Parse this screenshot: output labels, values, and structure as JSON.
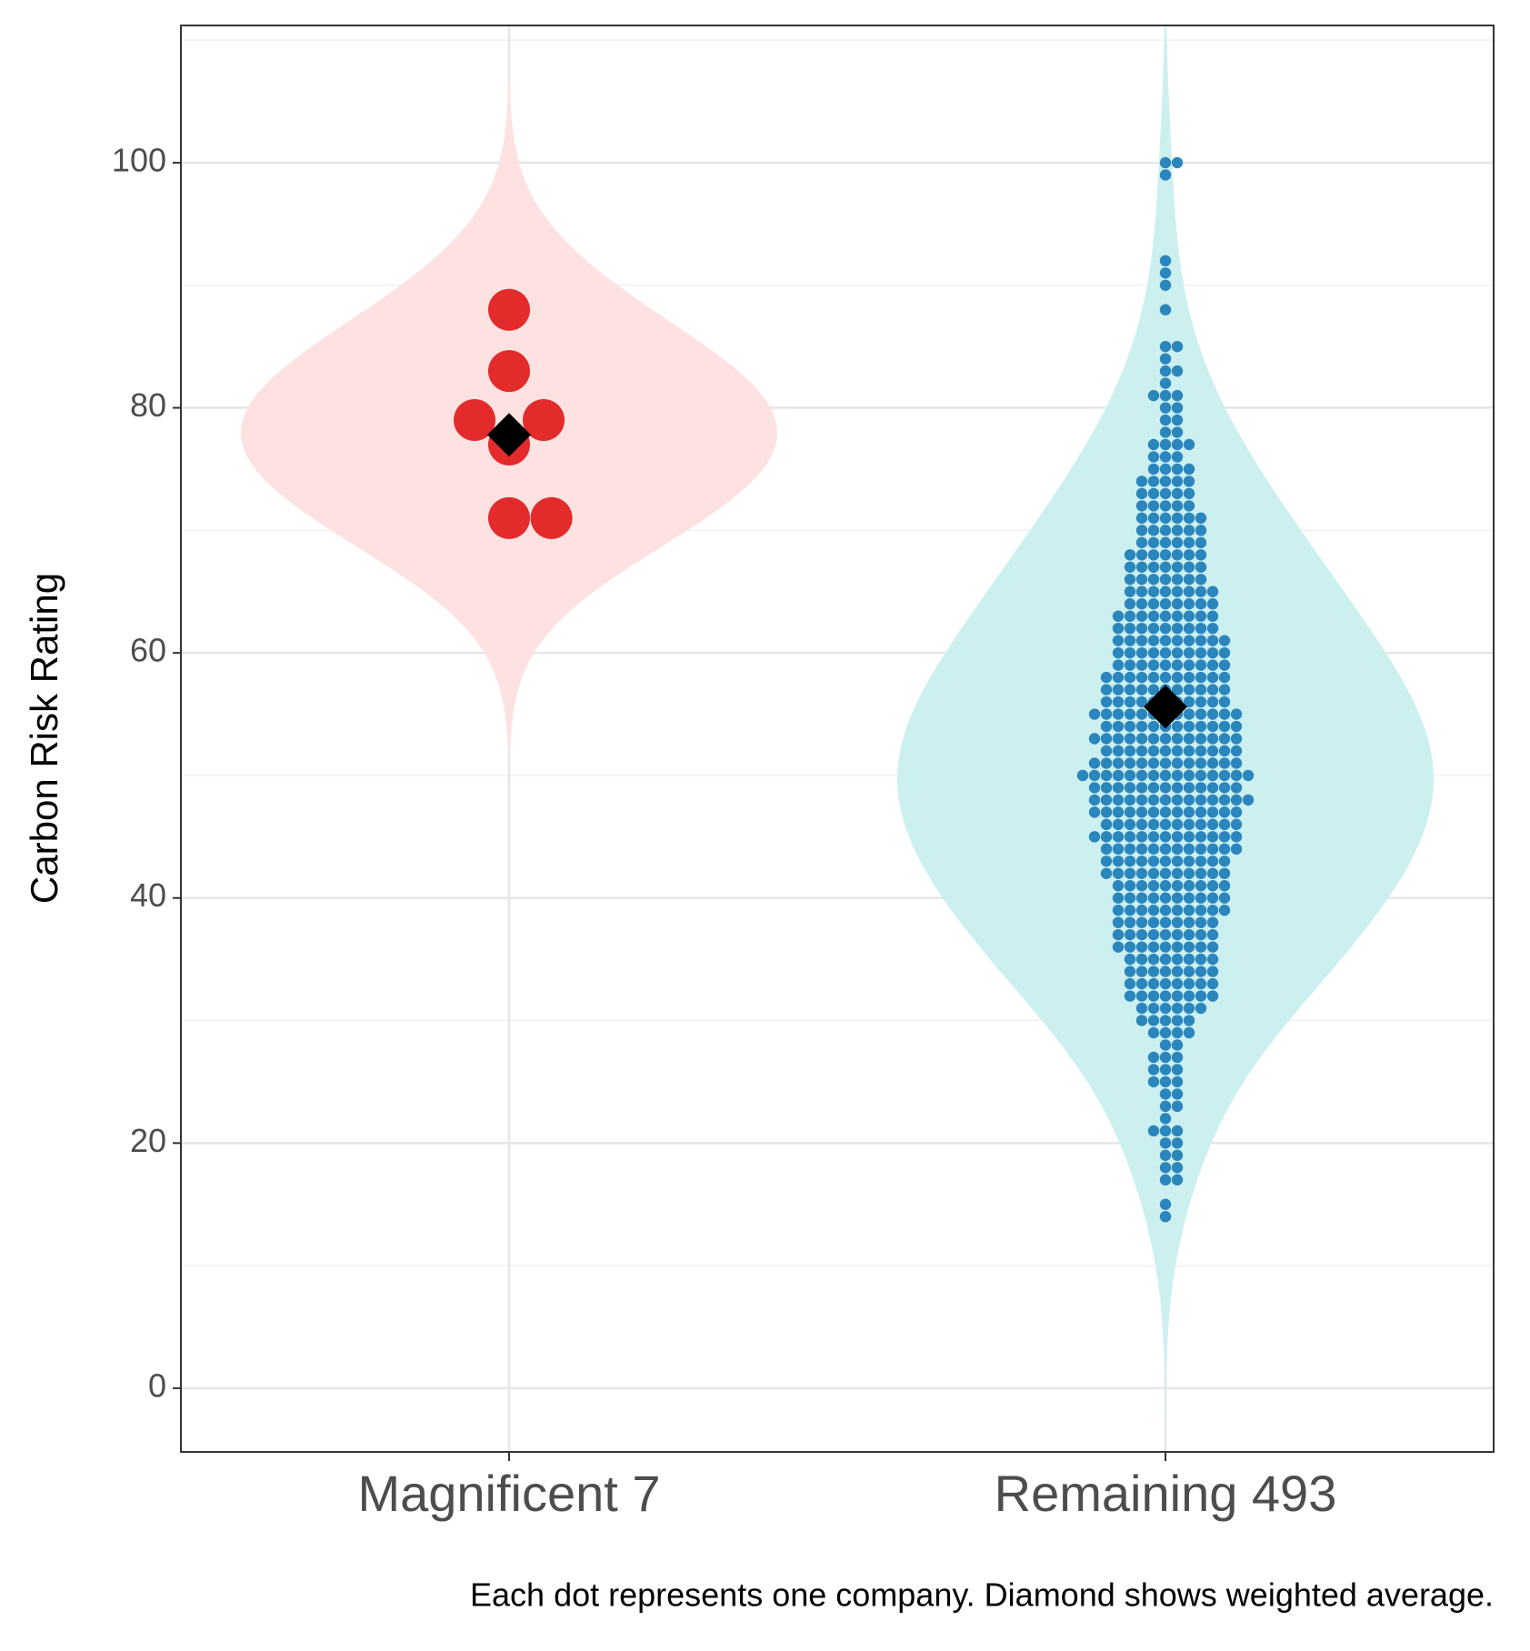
{
  "chart_data": {
    "type": "violin",
    "y_label": "Carbon Risk Rating",
    "caption": "Each dot represents one company. Diamond shows weighted average.",
    "categories": [
      "Magnificent 7",
      "Remaining 493"
    ],
    "ylim": [
      -5.2,
      111.2
    ],
    "yticks": [
      0,
      20,
      40,
      60,
      80,
      100
    ],
    "minor_yticks": [
      10,
      30,
      50,
      70,
      90,
      110
    ],
    "grid": true,
    "series": [
      {
        "color": "#e32b2b",
        "fill": "#fde2e1",
        "weighted_average": 77.8,
        "values": [
          79,
          71,
          83,
          71,
          88,
          79,
          77
        ]
      },
      {
        "color": "#2b86bd",
        "fill": "#ccf0f0",
        "weighted_average": 55.6,
        "values": [
          14,
          15,
          17,
          17,
          18,
          18,
          19,
          19,
          20,
          20,
          21,
          21,
          21,
          22,
          23,
          23,
          24,
          24,
          25,
          25,
          25,
          26,
          26,
          26,
          27,
          27,
          27,
          28,
          28,
          29,
          29,
          29,
          29,
          30,
          30,
          30,
          30,
          30,
          31,
          31,
          31,
          31,
          31,
          31,
          32,
          32,
          32,
          32,
          32,
          32,
          32,
          32,
          33,
          33,
          33,
          33,
          33,
          33,
          33,
          33,
          34,
          34,
          34,
          34,
          34,
          34,
          34,
          34,
          35,
          35,
          35,
          35,
          35,
          35,
          35,
          35,
          36,
          36,
          36,
          36,
          36,
          36,
          36,
          36,
          36,
          37,
          37,
          37,
          37,
          37,
          37,
          37,
          37,
          37,
          38,
          38,
          38,
          38,
          38,
          38,
          38,
          38,
          38,
          39,
          39,
          39,
          39,
          39,
          39,
          39,
          39,
          39,
          39,
          40,
          40,
          40,
          40,
          40,
          40,
          40,
          40,
          40,
          40,
          41,
          41,
          41,
          41,
          41,
          41,
          41,
          41,
          41,
          41,
          42,
          42,
          42,
          42,
          42,
          42,
          42,
          42,
          42,
          42,
          42,
          43,
          43,
          43,
          43,
          43,
          43,
          43,
          43,
          43,
          43,
          43,
          44,
          44,
          44,
          44,
          44,
          44,
          44,
          44,
          44,
          44,
          44,
          44,
          45,
          45,
          45,
          45,
          45,
          45,
          45,
          45,
          45,
          45,
          45,
          45,
          45,
          46,
          46,
          46,
          46,
          46,
          46,
          46,
          46,
          46,
          46,
          46,
          46,
          47,
          47,
          47,
          47,
          47,
          47,
          47,
          47,
          47,
          47,
          47,
          47,
          47,
          48,
          48,
          48,
          48,
          48,
          48,
          48,
          48,
          48,
          48,
          48,
          48,
          48,
          48,
          49,
          49,
          49,
          49,
          49,
          49,
          49,
          49,
          49,
          49,
          49,
          49,
          49,
          50,
          50,
          50,
          50,
          50,
          50,
          50,
          50,
          50,
          50,
          50,
          50,
          50,
          50,
          50,
          51,
          51,
          51,
          51,
          51,
          51,
          51,
          51,
          51,
          51,
          51,
          51,
          51,
          52,
          52,
          52,
          52,
          52,
          52,
          52,
          52,
          52,
          52,
          52,
          52,
          53,
          53,
          53,
          53,
          53,
          53,
          53,
          53,
          53,
          53,
          53,
          53,
          53,
          54,
          54,
          54,
          54,
          54,
          54,
          54,
          54,
          54,
          54,
          54,
          54,
          55,
          55,
          55,
          55,
          55,
          55,
          55,
          55,
          55,
          55,
          55,
          55,
          55,
          56,
          56,
          56,
          56,
          56,
          56,
          56,
          56,
          56,
          56,
          56,
          57,
          57,
          57,
          57,
          57,
          57,
          57,
          57,
          57,
          57,
          57,
          58,
          58,
          58,
          58,
          58,
          58,
          58,
          58,
          58,
          58,
          58,
          59,
          59,
          59,
          59,
          59,
          59,
          59,
          59,
          59,
          59,
          60,
          60,
          60,
          60,
          60,
          60,
          60,
          60,
          60,
          60,
          61,
          61,
          61,
          61,
          61,
          61,
          61,
          61,
          61,
          61,
          62,
          62,
          62,
          62,
          62,
          62,
          62,
          62,
          62,
          63,
          63,
          63,
          63,
          63,
          63,
          63,
          63,
          63,
          64,
          64,
          64,
          64,
          64,
          64,
          64,
          64,
          65,
          65,
          65,
          65,
          65,
          65,
          65,
          65,
          66,
          66,
          66,
          66,
          66,
          66,
          66,
          67,
          67,
          67,
          67,
          67,
          67,
          67,
          68,
          68,
          68,
          68,
          68,
          68,
          68,
          69,
          69,
          69,
          69,
          69,
          69,
          70,
          70,
          70,
          70,
          70,
          70,
          71,
          71,
          71,
          71,
          71,
          71,
          72,
          72,
          72,
          72,
          72,
          73,
          73,
          73,
          73,
          73,
          74,
          74,
          74,
          74,
          74,
          75,
          75,
          75,
          75,
          76,
          76,
          76,
          77,
          77,
          77,
          77,
          78,
          78,
          79,
          79,
          80,
          80,
          81,
          81,
          81,
          82,
          83,
          83,
          84,
          85,
          85,
          88,
          90,
          91,
          92,
          99,
          100,
          100
        ]
      }
    ]
  }
}
